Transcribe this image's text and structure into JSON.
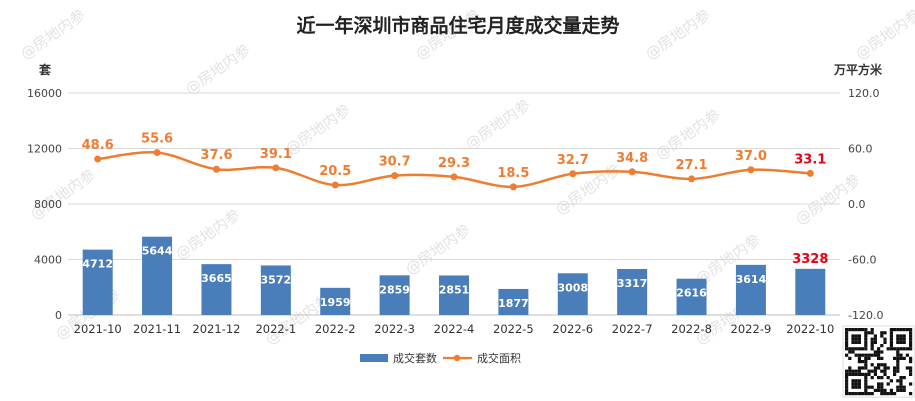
{
  "watermark": "@房地内参",
  "chart_data": {
    "type": "bar",
    "title": "近一年深圳市商品住宅月度成交量走势",
    "categories": [
      "2021-10",
      "2021-11",
      "2021-12",
      "2022-1",
      "2022-2",
      "2022-3",
      "2022-4",
      "2022-5",
      "2022-6",
      "2022-7",
      "2022-8",
      "2022-9",
      "2022-10"
    ],
    "y_left": {
      "unit": "套",
      "ylim": [
        0,
        16000
      ],
      "ticks": [
        "0",
        "4000",
        "8000",
        "12000",
        "16000"
      ]
    },
    "y_right": {
      "unit": "万平方米",
      "ylim": [
        -120,
        120
      ],
      "ticks": [
        "-120.0",
        "-60.0",
        "0.0",
        "60.0",
        "120.0"
      ]
    },
    "series": [
      {
        "name": "成交套数",
        "type": "bar",
        "axis": "left",
        "color": "#4a7ebb",
        "values": [
          4712,
          5644,
          3665,
          3572,
          1959,
          2859,
          2851,
          1877,
          3008,
          3317,
          2616,
          3614,
          3328
        ],
        "labels": [
          "4712",
          "5644",
          "3665",
          "3572",
          "1959",
          "2859",
          "2851",
          "1877",
          "3008",
          "3317",
          "2616",
          "3614",
          "3328"
        ]
      },
      {
        "name": "成交面积",
        "type": "line",
        "axis": "right",
        "color": "#ee7d31",
        "values": [
          48.6,
          55.6,
          37.6,
          39.1,
          20.5,
          30.7,
          29.3,
          18.5,
          32.7,
          34.8,
          27.1,
          37.0,
          33.1
        ],
        "labels": [
          "48.6",
          "55.6",
          "37.6",
          "39.1",
          "20.5",
          "30.7",
          "29.3",
          "18.5",
          "32.7",
          "34.8",
          "27.1",
          "37.0",
          "33.1"
        ]
      }
    ],
    "highlight_color": "#e60012",
    "grid": true,
    "legend": "bottom"
  }
}
